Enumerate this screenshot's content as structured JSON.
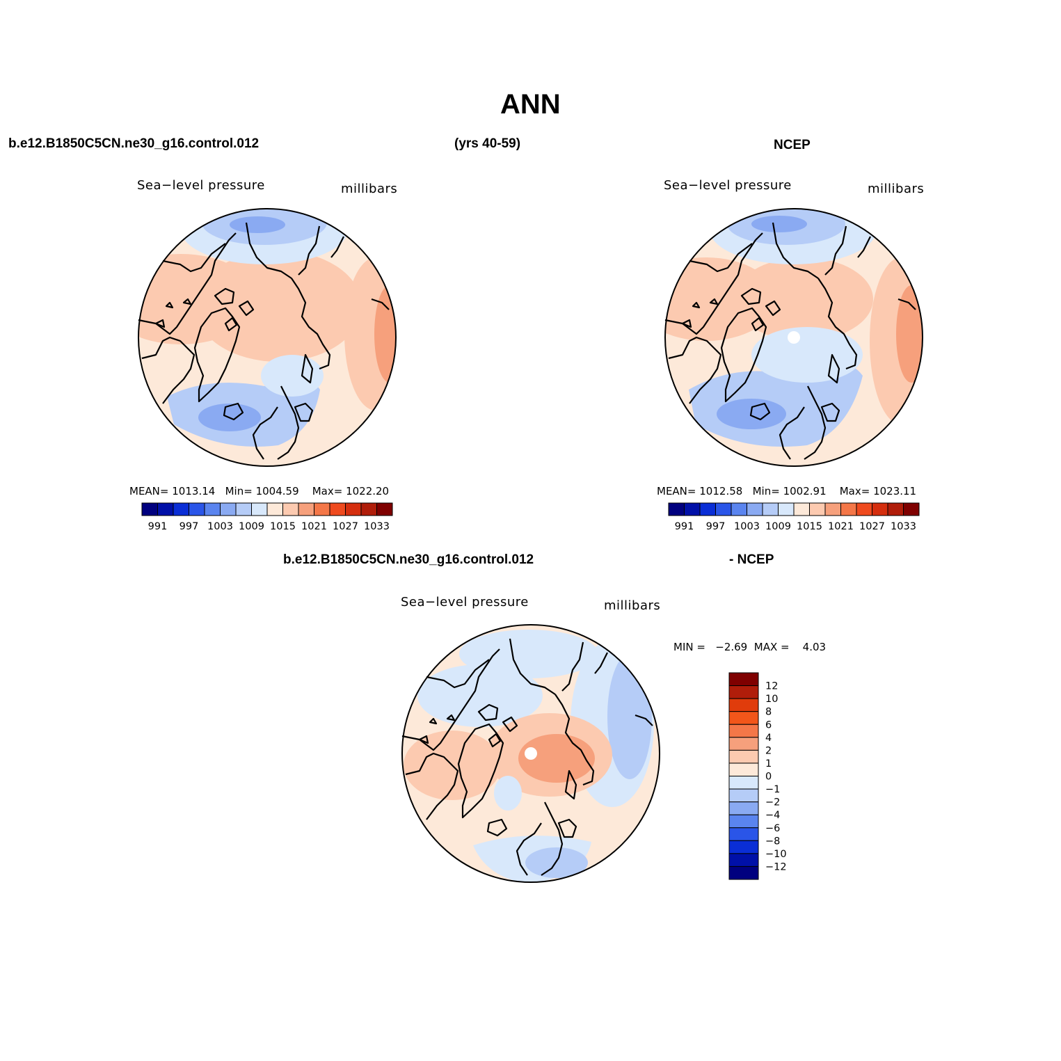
{
  "page": {
    "title": "ANN",
    "case_name": "b.e12.B1850C5CN.ne30_g16.control.012",
    "years": "(yrs 40-59)",
    "reference": "NCEP",
    "diff_case_name": "b.e12.B1850C5CN.ne30_g16.control.012",
    "diff_reference": "- NCEP"
  },
  "panels": [
    {
      "id": "model",
      "variable": "Sea−level pressure",
      "units": "millibars",
      "stats": {
        "mean_label": "MEAN=",
        "mean": "1013.14",
        "min_label": "Min=",
        "min": "1004.59",
        "max_label": "Max=",
        "max": "1022.20"
      }
    },
    {
      "id": "obs",
      "variable": "Sea−level pressure",
      "units": "millibars",
      "stats": {
        "mean_label": "MEAN=",
        "mean": "1012.58",
        "min_label": "Min=",
        "min": "1002.91",
        "max_label": "Max=",
        "max": "1023.11"
      }
    },
    {
      "id": "diff",
      "variable": "Sea−level pressure",
      "units": "millibars",
      "stats": {
        "min_label": "MIN =",
        "min": "−2.69",
        "max_label": "MAX =",
        "max": "4.03"
      }
    }
  ],
  "legend_abs": {
    "colors": [
      "#00007f",
      "#0010a8",
      "#0a2ed6",
      "#2a55e8",
      "#5a84ef",
      "#8aaaf2",
      "#b5ccf7",
      "#d8e8fb",
      "#fde9d9",
      "#fccab0",
      "#f6a07c",
      "#f47748",
      "#ef4a1e",
      "#d52e0e",
      "#b01d0a",
      "#7f0000"
    ],
    "tick_labels": [
      "991",
      "997",
      "1003",
      "1009",
      "1015",
      "1021",
      "1027",
      "1033"
    ]
  },
  "legend_diff": {
    "colors": [
      "#7f0000",
      "#b01d0a",
      "#e03c0c",
      "#f2561a",
      "#f47748",
      "#f6a07c",
      "#fccab0",
      "#fde9d9",
      "#d8e8fb",
      "#b5ccf7",
      "#8aaaf2",
      "#5a84ef",
      "#2a55e8",
      "#0a2ed6",
      "#0010a8",
      "#00007f"
    ],
    "tick_labels": [
      "12",
      "10",
      "8",
      "6",
      "4",
      "2",
      "1",
      "0",
      "−1",
      "−2",
      "−4",
      "−6",
      "−8",
      "−10",
      "−12"
    ]
  }
}
